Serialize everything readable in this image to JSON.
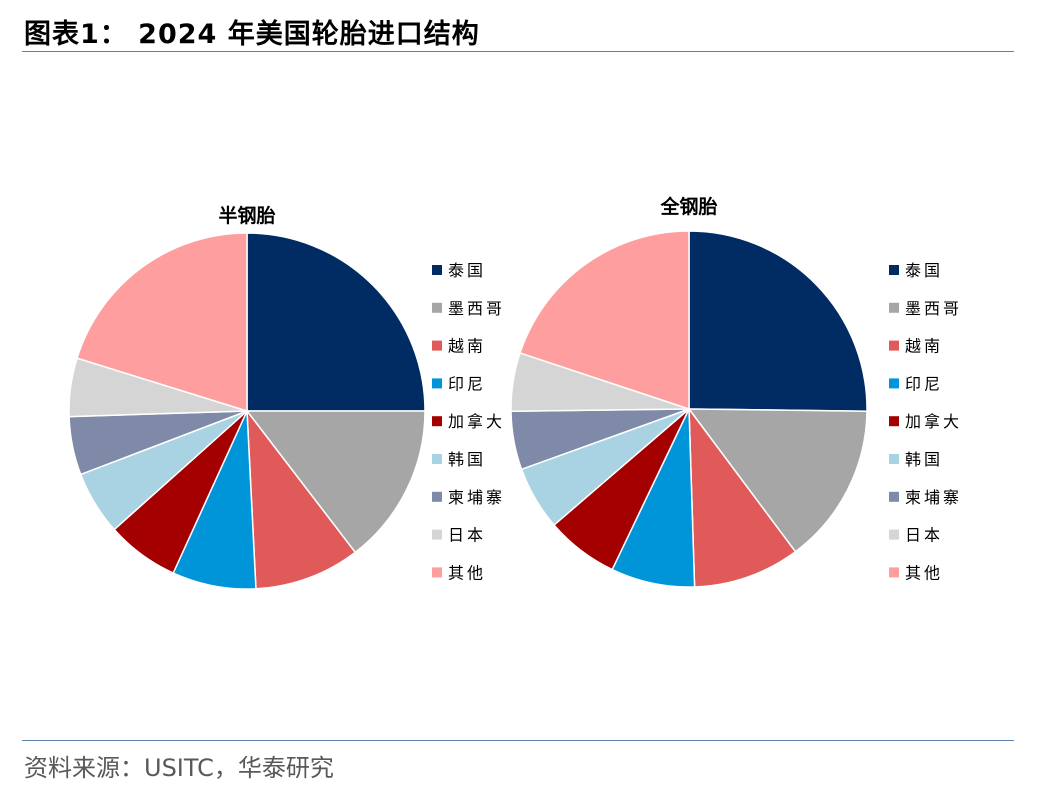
{
  "header": {
    "title": "图表1：  2024 年美国轮胎进口结构"
  },
  "footer": {
    "source": "资料来源：USITC，华泰研究"
  },
  "chart_data": [
    {
      "type": "pie",
      "title": "半钢胎",
      "legend_position": "right",
      "categories": [
        "泰国",
        "墨西哥",
        "越南",
        "印尼",
        "加拿大",
        "韩国",
        "柬埔寨",
        "日本",
        "其他"
      ],
      "values": [
        25.0,
        14.6,
        9.6,
        7.6,
        6.6,
        5.8,
        5.3,
        5.3,
        20.2
      ],
      "colors": [
        "#002b63",
        "#a6a6a6",
        "#e05a5a",
        "#0095d9",
        "#a50000",
        "#a9d3e3",
        "#7f89a8",
        "#d5d5d5",
        "#ff9e9e"
      ]
    },
    {
      "type": "pie",
      "title": "全钢胎",
      "legend_position": "right",
      "categories": [
        "泰国",
        "墨西哥",
        "越南",
        "印尼",
        "加拿大",
        "韩国",
        "柬埔寨",
        "日本",
        "其他"
      ],
      "values": [
        25.2,
        14.6,
        9.7,
        7.6,
        6.6,
        5.8,
        5.3,
        5.3,
        19.9
      ],
      "colors": [
        "#002b63",
        "#a6a6a6",
        "#e05a5a",
        "#0095d9",
        "#a50000",
        "#a9d3e3",
        "#7f89a8",
        "#d5d5d5",
        "#ff9e9e"
      ]
    }
  ]
}
